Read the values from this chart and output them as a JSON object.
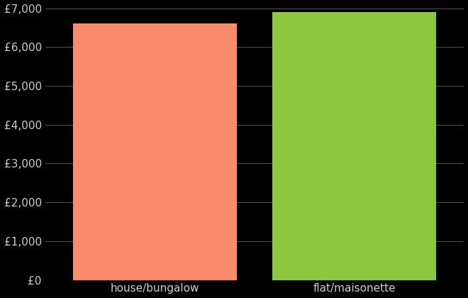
{
  "categories": [
    "house/bungalow",
    "flat/maisonette"
  ],
  "values": [
    6600,
    6900
  ],
  "bar_colors": [
    "#FA8C6E",
    "#8DC63F"
  ],
  "background_color": "#000000",
  "text_color": "#cccccc",
  "ylim": [
    0,
    7000
  ],
  "yticks": [
    0,
    1000,
    2000,
    3000,
    4000,
    5000,
    6000,
    7000
  ],
  "grid_color": "#555555",
  "xlabel_fontsize": 11,
  "ylabel_fontsize": 11
}
